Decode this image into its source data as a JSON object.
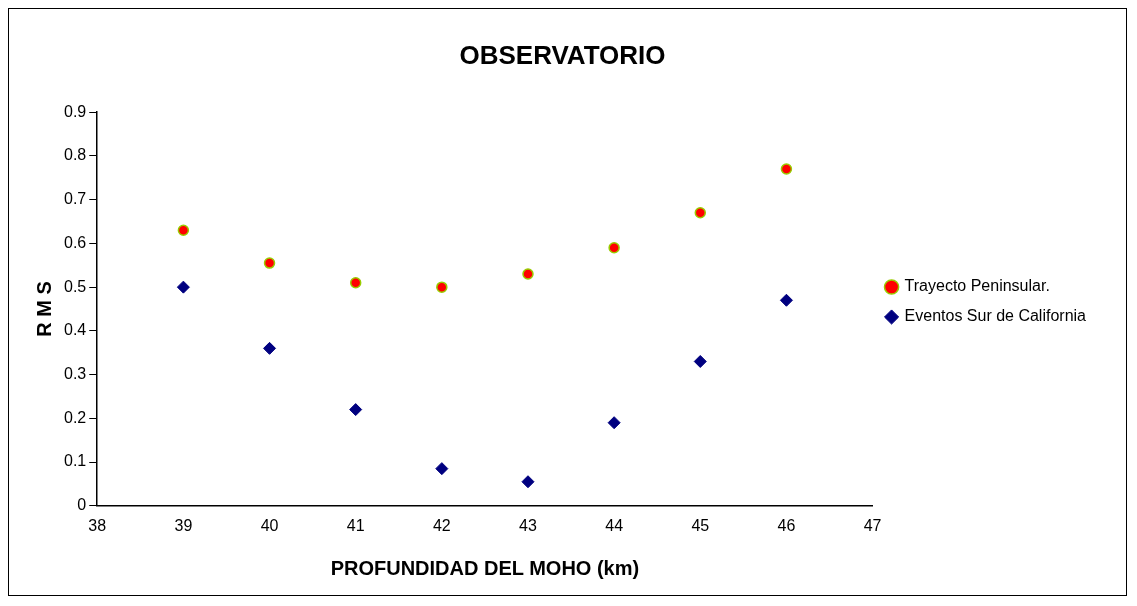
{
  "chart_data": {
    "type": "scatter",
    "title": "OBSERVATORIO",
    "xlabel": "PROFUNDIDAD DEL MOHO (km)",
    "ylabel": "R M S",
    "x": [
      39,
      40,
      41,
      42,
      43,
      44,
      45,
      46
    ],
    "series": [
      {
        "name": "Trayecto Peninsular.",
        "color": "#ff0000",
        "marker": "circle",
        "values": [
          0.63,
          0.555,
          0.51,
          0.5,
          0.53,
          0.59,
          0.67,
          0.77
        ]
      },
      {
        "name": "Eventos Sur de California",
        "color": "#000080",
        "marker": "diamond",
        "values": [
          0.5,
          0.36,
          0.22,
          0.085,
          0.055,
          0.19,
          0.33,
          0.47
        ]
      }
    ],
    "xlim": [
      38,
      47
    ],
    "xticks": [
      38,
      39,
      40,
      41,
      42,
      43,
      44,
      45,
      46,
      47
    ],
    "ylim": [
      0,
      0.9
    ],
    "yticks": [
      0,
      0.1,
      0.2,
      0.3,
      0.4,
      0.5,
      0.6,
      0.7,
      0.8,
      0.9
    ],
    "grid": false,
    "legend": "right"
  }
}
